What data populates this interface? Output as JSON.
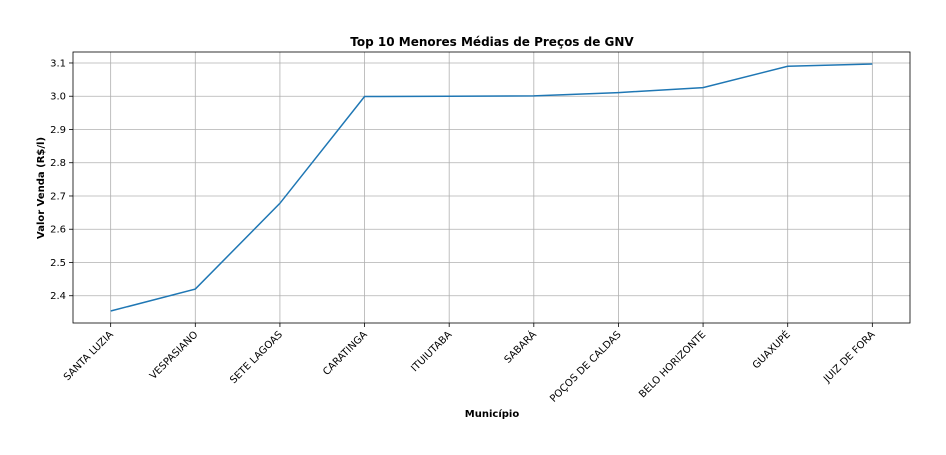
{
  "chart_data": {
    "type": "line",
    "title": "Top 10 Menores Médias de Preços de GNV",
    "xlabel": "Município",
    "ylabel": "Valor Venda (R$/l)",
    "categories": [
      "SANTA LUZIA",
      "VESPASIANO",
      "SETE LAGOAS",
      "CARATINGA",
      "ITUIUTABA",
      "SABARÁ",
      "POÇOS DE CALDAS",
      "BELO HORIZONTE",
      "GUAXUPÉ",
      "JUIZ DE FORA"
    ],
    "series": [
      {
        "values": [
          2.354,
          2.42,
          2.678,
          2.999,
          3.0,
          3.001,
          3.011,
          3.026,
          3.09,
          3.097
        ]
      }
    ],
    "ylim": [
      2.318,
      3.133
    ],
    "yticks": [
      2.4,
      2.5,
      2.6,
      2.7,
      2.8,
      2.9,
      3.0,
      3.1
    ],
    "grid": true,
    "line_color": "#1f77b4"
  }
}
